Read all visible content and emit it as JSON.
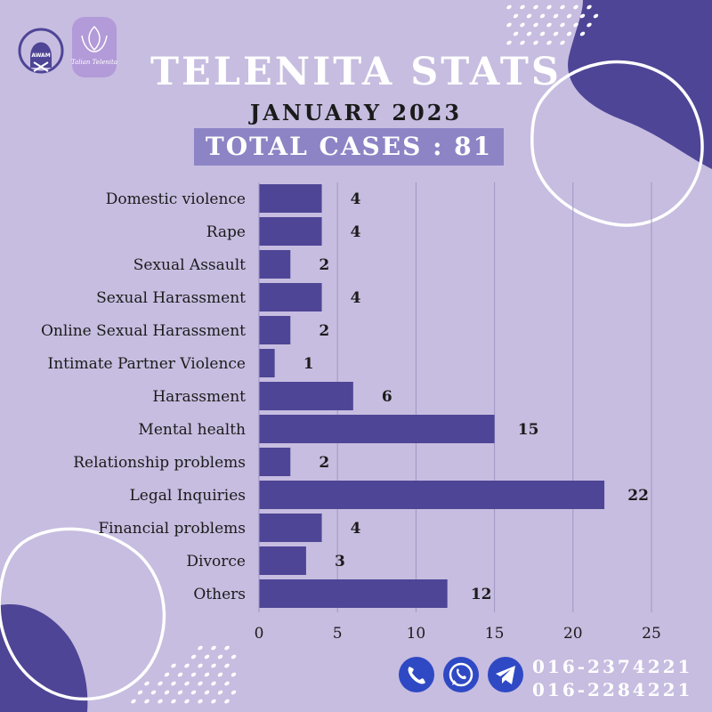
{
  "header": {
    "title": "TELENITA STATS",
    "subtitle": "JANUARY 2023",
    "total_cases": "TOTAL CASES : 81",
    "logo_awam_text": "AWAM",
    "logo_telenita_text": "Talian Telenita"
  },
  "colors": {
    "background": "#c7bde0",
    "bar": "#4e4596",
    "accent_blob": "#4e4596",
    "total_box": "#8d84c6",
    "icon_blue": "#2f49c4"
  },
  "chart_data": {
    "type": "bar",
    "orientation": "horizontal",
    "categories": [
      "Domestic violence",
      "Rape",
      "Sexual Assault",
      "Sexual Harassment",
      "Online Sexual Harassment",
      "Intimate Partner Violence",
      "Harassment",
      "Mental health",
      "Relationship problems",
      "Legal Inquiries",
      "Financial problems",
      "Divorce",
      "Others"
    ],
    "values": [
      4,
      4,
      2,
      4,
      2,
      1,
      6,
      15,
      2,
      22,
      4,
      3,
      12
    ],
    "xlim": [
      0,
      25
    ],
    "xticks": [
      0,
      5,
      10,
      15,
      20,
      25
    ],
    "grid": true,
    "data_labels": true,
    "title": "",
    "xlabel": "",
    "ylabel": ""
  },
  "contact": {
    "icons": [
      "phone-icon",
      "whatsapp-icon",
      "telegram-icon"
    ],
    "phones": [
      "016-2374221",
      "016-2284221"
    ]
  }
}
